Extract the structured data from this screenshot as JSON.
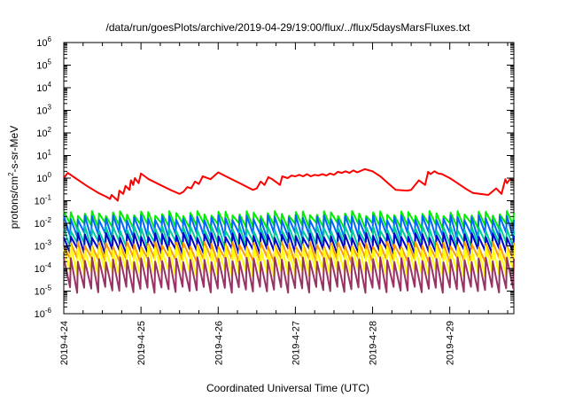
{
  "chart_data": {
    "type": "line",
    "title": "/data/run/goesPlots/archive/2019-04-29/19:00/flux/../flux/5daysMarsFluxes.txt",
    "xlabel": "Coordinated Universal Time (UTC)",
    "ylabel": {
      "base": "protons/cm",
      "sup": "2",
      "tail": "-s-sr-MeV"
    },
    "yscale": "log",
    "ylim_exp": [
      -6,
      6
    ],
    "y_ticks": [
      {
        "base": "10",
        "exp": "6"
      },
      {
        "base": "10",
        "exp": "5"
      },
      {
        "base": "10",
        "exp": "4"
      },
      {
        "base": "10",
        "exp": "3"
      },
      {
        "base": "10",
        "exp": "2"
      },
      {
        "base": "10",
        "exp": "1"
      },
      {
        "base": "10",
        "exp": "0"
      },
      {
        "base": "10",
        "exp": "-1"
      },
      {
        "base": "10",
        "exp": "-2"
      },
      {
        "base": "10",
        "exp": "-3"
      },
      {
        "base": "10",
        "exp": "-4"
      },
      {
        "base": "10",
        "exp": "-5"
      },
      {
        "base": "10",
        "exp": "-6"
      }
    ],
    "xlim_days": [
      0,
      5.83
    ],
    "x_ticks": [
      "2019-4-24",
      "2019-4-25",
      "2019-4-26",
      "2019-4-27",
      "2019-4-28",
      "2019-4-29"
    ],
    "grid": false,
    "legend": "none",
    "series": [
      {
        "color": "#ff0000",
        "x": [
          0.0,
          0.05,
          0.15,
          0.3,
          0.45,
          0.55,
          0.6,
          0.62,
          0.7,
          0.72,
          0.77,
          0.8,
          0.85,
          0.87,
          0.9,
          0.92,
          0.97,
          1.0,
          1.05,
          1.1,
          1.25,
          1.4,
          1.5,
          1.55,
          1.6,
          1.65,
          1.7,
          1.75,
          1.8,
          1.9,
          2.0,
          2.1,
          2.3,
          2.45,
          2.5,
          2.55,
          2.6,
          2.65,
          2.7,
          2.8,
          2.83,
          2.9,
          2.95,
          3.0,
          3.05,
          3.1,
          3.15,
          3.2,
          3.25,
          3.3,
          3.35,
          3.4,
          3.45,
          3.5,
          3.55,
          3.6,
          3.65,
          3.7,
          3.75,
          3.8,
          3.9,
          4.0,
          4.1,
          4.2,
          4.3,
          4.45,
          4.5,
          4.6,
          4.68,
          4.72,
          4.75,
          4.8,
          4.85,
          4.9,
          5.0,
          5.1,
          5.2,
          5.3,
          5.5,
          5.6,
          5.67,
          5.72,
          5.74,
          5.78,
          5.83
        ],
        "y": [
          1.0,
          1.7,
          1.0,
          0.45,
          0.22,
          0.15,
          0.12,
          0.18,
          0.1,
          0.28,
          0.2,
          0.45,
          0.3,
          0.8,
          0.5,
          1.0,
          0.6,
          1.6,
          1.2,
          0.9,
          0.5,
          0.28,
          0.2,
          0.25,
          0.4,
          0.35,
          0.7,
          0.55,
          1.2,
          0.9,
          1.8,
          1.2,
          0.55,
          0.3,
          0.35,
          0.7,
          0.5,
          1.1,
          0.9,
          0.5,
          1.2,
          1.0,
          1.3,
          1.2,
          1.4,
          1.2,
          1.5,
          1.2,
          1.4,
          1.3,
          1.5,
          1.3,
          1.6,
          1.4,
          1.9,
          1.7,
          2.0,
          1.7,
          2.2,
          1.8,
          2.5,
          2.0,
          1.2,
          0.6,
          0.3,
          0.28,
          0.3,
          0.8,
          0.5,
          1.9,
          1.5,
          2.0,
          1.6,
          1.5,
          1.0,
          0.6,
          0.35,
          0.22,
          0.18,
          0.35,
          0.2,
          0.9,
          0.6,
          0.9,
          0.8
        ]
      },
      {
        "color": "#00ee00",
        "lo": 0.008,
        "hi": 0.028,
        "trend": 0.0,
        "cycles": 64
      },
      {
        "color": "#0066ff",
        "lo": 0.003,
        "hi": 0.018,
        "trend": 0.0,
        "cycles": 64
      },
      {
        "color": "#00cc99",
        "lo": 0.0012,
        "hi": 0.006,
        "trend": 0.0,
        "cycles": 64
      },
      {
        "color": "#0000cc",
        "lo": 0.0006,
        "hi": 0.003,
        "trend": 0.0,
        "cycles": 64
      },
      {
        "color": "#ff9900",
        "lo": 0.00025,
        "hi": 0.0012,
        "trend": 0.0,
        "cycles": 64
      },
      {
        "color": "#ffff00",
        "lo": 6e-05,
        "hi": 0.0008,
        "trend": 0.0,
        "cycles": 64
      },
      {
        "color": "#993366",
        "lo": 1.2e-05,
        "hi": 0.00025,
        "trend": 0.0,
        "cycles": 64
      }
    ]
  }
}
